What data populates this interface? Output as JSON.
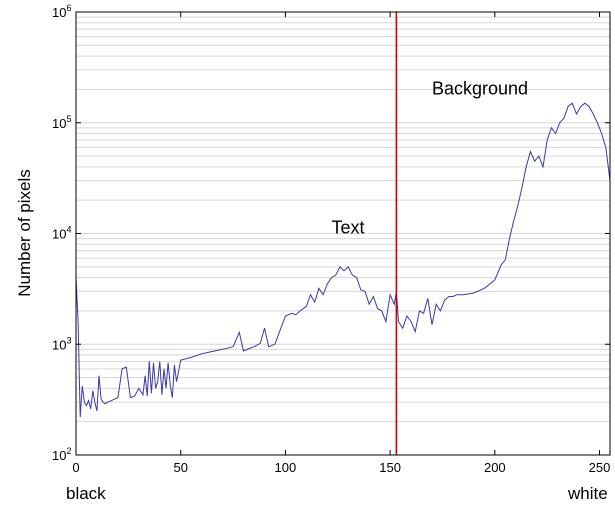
{
  "chart_data": {
    "type": "line",
    "ylabel": "Number of pixels",
    "xlabel": "",
    "x_end_labels": {
      "min": "black",
      "max": "white"
    },
    "xlim": [
      0,
      255
    ],
    "ylim": [
      100,
      1000000
    ],
    "yscale": "log",
    "grid": {
      "y_minor": true,
      "x": false
    },
    "x_ticks": [
      0,
      50,
      100,
      150,
      200,
      250
    ],
    "y_ticks": [
      {
        "value": 100,
        "base": "10",
        "exp": "2"
      },
      {
        "value": 1000,
        "base": "10",
        "exp": "3"
      },
      {
        "value": 10000,
        "base": "10",
        "exp": "4"
      },
      {
        "value": 100000,
        "base": "10",
        "exp": "5"
      },
      {
        "value": 1000000,
        "base": "10",
        "exp": "6"
      }
    ],
    "threshold": {
      "x": 153,
      "color": "#cc0000"
    },
    "annotations": [
      {
        "text": "Text",
        "x": 122,
        "y": 10000
      },
      {
        "text": "Background",
        "x": 170,
        "y": 180000
      }
    ],
    "series": [
      {
        "color": "#3a3aa8",
        "x": [
          0,
          1,
          2,
          3,
          4,
          5,
          6,
          7,
          8,
          9,
          10,
          11,
          12,
          13,
          14,
          15,
          17,
          20,
          22,
          24,
          26,
          28,
          30,
          32,
          33,
          34,
          35,
          36,
          37,
          38,
          39,
          40,
          41,
          42,
          43,
          44,
          45,
          46,
          47,
          48,
          49,
          50,
          55,
          60,
          65,
          70,
          75,
          78,
          80,
          85,
          88,
          90,
          92,
          95,
          100,
          103,
          105,
          107,
          110,
          112,
          114,
          116,
          118,
          120,
          122,
          124,
          126,
          128,
          130,
          132,
          134,
          136,
          138,
          140,
          142,
          144,
          146,
          148,
          150,
          152,
          153,
          154,
          156,
          158,
          160,
          162,
          164,
          166,
          168,
          170,
          172,
          174,
          176,
          178,
          180,
          182,
          185,
          190,
          195,
          200,
          203,
          205,
          207,
          209,
          211,
          213,
          215,
          217,
          219,
          221,
          223,
          225,
          227,
          229,
          231,
          233,
          235,
          237,
          239,
          241,
          243,
          245,
          247,
          249,
          251,
          253,
          255
        ],
        "y": [
          4000,
          1600,
          220,
          420,
          300,
          280,
          310,
          260,
          380,
          300,
          250,
          520,
          320,
          300,
          290,
          300,
          310,
          330,
          600,
          620,
          330,
          340,
          400,
          350,
          520,
          340,
          700,
          360,
          680,
          400,
          460,
          700,
          350,
          600,
          400,
          680,
          430,
          330,
          650,
          460,
          570,
          720,
          760,
          820,
          860,
          900,
          950,
          1280,
          870,
          950,
          1020,
          1400,
          950,
          1000,
          1800,
          1900,
          1850,
          2000,
          2200,
          2800,
          2400,
          3200,
          2800,
          3500,
          4000,
          4200,
          5000,
          4600,
          5000,
          4200,
          4000,
          3100,
          3000,
          2300,
          2700,
          2100,
          2000,
          1600,
          2800,
          2300,
          3000,
          1600,
          1400,
          1800,
          1600,
          1300,
          2000,
          1900,
          2600,
          1500,
          2300,
          2000,
          2500,
          2700,
          2700,
          2800,
          2800,
          2900,
          3200,
          3800,
          5200,
          5800,
          9000,
          13000,
          18000,
          26000,
          40000,
          55000,
          45000,
          50000,
          40000,
          70000,
          90000,
          80000,
          100000,
          110000,
          140000,
          150000,
          120000,
          140000,
          150000,
          140000,
          120000,
          100000,
          80000,
          60000,
          30000
        ]
      }
    ]
  }
}
